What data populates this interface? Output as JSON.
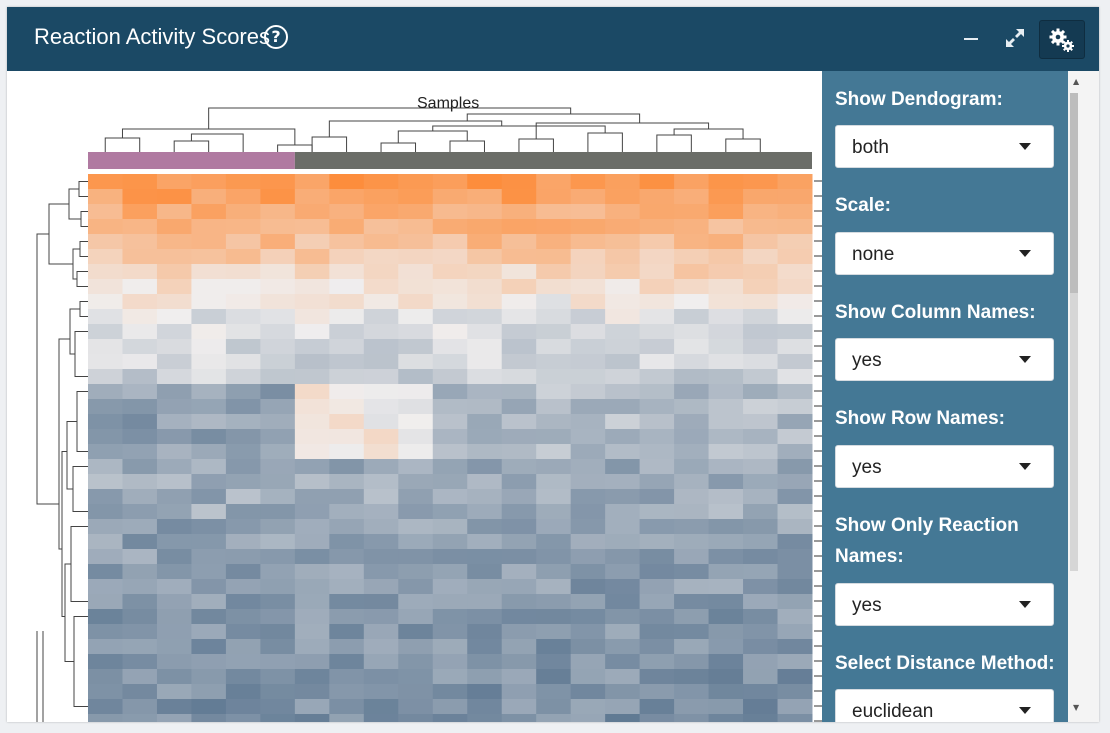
{
  "panel": {
    "title": "Reaction Activity Scores",
    "help_icon": "question-circle-icon",
    "tools": {
      "minimize_icon": "minus-icon",
      "maximize_icon": "expand-icon",
      "settings_icon": "gears-icon"
    }
  },
  "heatmap": {
    "column_axis_label": "Samples",
    "groups": [
      {
        "color": "#b07aa1",
        "count": 6
      },
      {
        "color": "#6b6d68",
        "count": 15
      }
    ],
    "colors": {
      "high": "#fd8d3c",
      "mid": "#f0eeee",
      "low": "#4d6a87"
    }
  },
  "sidebar": {
    "fields": [
      {
        "label": "Show Dendogram:",
        "value": "both"
      },
      {
        "label": "Scale:",
        "value": "none"
      },
      {
        "label": "Show Column Names:",
        "value": "yes"
      },
      {
        "label": "Show Row Names:",
        "value": "yes"
      },
      {
        "label": "Show Only Reaction Names:",
        "value": "yes"
      },
      {
        "label": "Select Distance Method:",
        "value": "euclidean"
      }
    ]
  }
}
